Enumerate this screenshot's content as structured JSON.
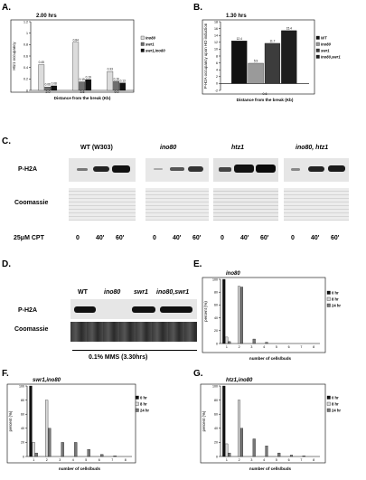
{
  "figure": {
    "labels": [
      "A.",
      "B.",
      "C.",
      "D.",
      "E.",
      "F.",
      "G."
    ]
  },
  "panel_c": {
    "groups": [
      "WT (W303)",
      "ino80",
      "htz1",
      "ino80, htz1"
    ],
    "rows": [
      "P-H2A",
      "Coomassie"
    ],
    "treatment": "25μM CPT",
    "timepoints": [
      "0",
      "40'",
      "60'"
    ]
  },
  "panel_d": {
    "lanes": [
      "WT",
      "ino80",
      "swr1",
      "ino80,swr1"
    ],
    "rows": [
      "P-H2A",
      "Coomassie"
    ],
    "treatment": "0.1% MMS (3.30hrs)"
  },
  "chart_data": [
    {
      "id": "A",
      "type": "bar",
      "title": "2.00 hrs",
      "ylabel": "Htz1 occupancy",
      "xlabel": "Distance from the break (Kb)",
      "categories": [
        "2.0",
        "3.6",
        "9.0"
      ],
      "ylim": [
        0,
        1.2
      ],
      "yticks": [
        "0",
        "0.2",
        "0.4",
        "0.6",
        "0.8",
        "1",
        "1.2"
      ],
      "series": [
        {
          "name": "ino80",
          "values": [
            0.45,
            0.84,
            0.33
          ],
          "labels": [
            "0.45",
            "0.84",
            "0.33"
          ],
          "color": "#dcdcdc"
        },
        {
          "name": "swr1",
          "values": [
            0.06,
            0.15,
            0.16
          ],
          "labels": [
            "0.06",
            "0.15",
            "0.16"
          ],
          "color": "#6e6e6e"
        },
        {
          "name": "swr1,ino80",
          "values": [
            0.08,
            0.19,
            0.13
          ],
          "labels": [
            "0.08",
            "0.19",
            "0.13"
          ],
          "color": "#111111"
        }
      ],
      "legend": "right"
    },
    {
      "id": "B",
      "type": "bar",
      "title": "1.30 hrs",
      "ylabel": "P-H2A occupancy upon HO induction",
      "xlabel": "Distance from the break (Kb)",
      "categories": [
        "0.6"
      ],
      "ylim": [
        -2,
        18
      ],
      "yticks": [
        "-2",
        "0",
        "2",
        "4",
        "6",
        "8",
        "10",
        "12",
        "14",
        "16",
        "18"
      ],
      "series": [
        {
          "name": "WT",
          "values": [
            12.4
          ],
          "labels": [
            "12.4"
          ],
          "color": "#111111"
        },
        {
          "name": "ino80",
          "values": [
            5.9
          ],
          "labels": [
            "5.9"
          ],
          "color": "#9a9a9a"
        },
        {
          "name": "swr1",
          "values": [
            11.7
          ],
          "labels": [
            "11.7"
          ],
          "color": "#3c3c3c"
        },
        {
          "name": "ino80,swr1",
          "values": [
            15.4
          ],
          "labels": [
            "15.4"
          ],
          "color": "#1e1e1e"
        }
      ],
      "legend": "right"
    },
    {
      "id": "E",
      "type": "bar",
      "title": "ino80",
      "ylabel": "percent (%)",
      "xlabel": "number of cells/buds",
      "categories": [
        "1",
        "2",
        "3",
        "4",
        "5",
        "6",
        "7",
        "8"
      ],
      "ylim": [
        0,
        100
      ],
      "yticks": [
        "0",
        "20",
        "40",
        "60",
        "80",
        "100"
      ],
      "series": [
        {
          "name": "0 hr",
          "values": [
            100,
            0,
            0,
            0,
            0,
            0,
            0,
            0
          ],
          "color": "#111111"
        },
        {
          "name": "8 hr",
          "values": [
            10,
            89,
            0,
            0,
            0,
            0,
            0,
            0
          ],
          "color": "#d8d8d8"
        },
        {
          "name": "24 hr",
          "values": [
            3,
            88,
            7,
            2,
            0,
            0,
            0,
            0
          ],
          "color": "#777777"
        }
      ],
      "legend": "right"
    },
    {
      "id": "F",
      "type": "bar",
      "title": "swr1,ino80",
      "ylabel": "percent (%)",
      "xlabel": "number of cells/buds",
      "categories": [
        "1",
        "2",
        "3",
        "4",
        "5",
        "6",
        "7",
        "8"
      ],
      "ylim": [
        0,
        100
      ],
      "yticks": [
        "0",
        "20",
        "40",
        "60",
        "80",
        "100"
      ],
      "series": [
        {
          "name": "0 hr",
          "values": [
            100,
            0,
            0,
            0,
            0,
            0,
            0,
            0
          ],
          "color": "#111111"
        },
        {
          "name": "8 hr",
          "values": [
            20,
            80,
            0,
            0,
            0,
            0,
            0,
            0
          ],
          "color": "#d8d8d8"
        },
        {
          "name": "24 hr",
          "values": [
            5,
            40,
            20,
            20,
            10,
            3,
            1,
            0
          ],
          "color": "#777777"
        }
      ],
      "legend": "right"
    },
    {
      "id": "G",
      "type": "bar",
      "title": "htz1,ino80",
      "ylabel": "percent (%)",
      "xlabel": "number of cells/buds",
      "categories": [
        "1",
        "2",
        "3",
        "4",
        "5",
        "6",
        "7",
        "8"
      ],
      "ylim": [
        0,
        100
      ],
      "yticks": [
        "0",
        "20",
        "40",
        "60",
        "80",
        "100"
      ],
      "series": [
        {
          "name": "0 hr",
          "values": [
            100,
            0,
            0,
            0,
            0,
            0,
            0,
            0
          ],
          "color": "#111111"
        },
        {
          "name": "8 hr",
          "values": [
            18,
            80,
            0,
            0,
            0,
            0,
            0,
            0
          ],
          "color": "#d8d8d8"
        },
        {
          "name": "24 hr",
          "values": [
            5,
            40,
            25,
            15,
            5,
            2,
            1,
            0
          ],
          "color": "#777777"
        }
      ],
      "legend": "right"
    }
  ]
}
